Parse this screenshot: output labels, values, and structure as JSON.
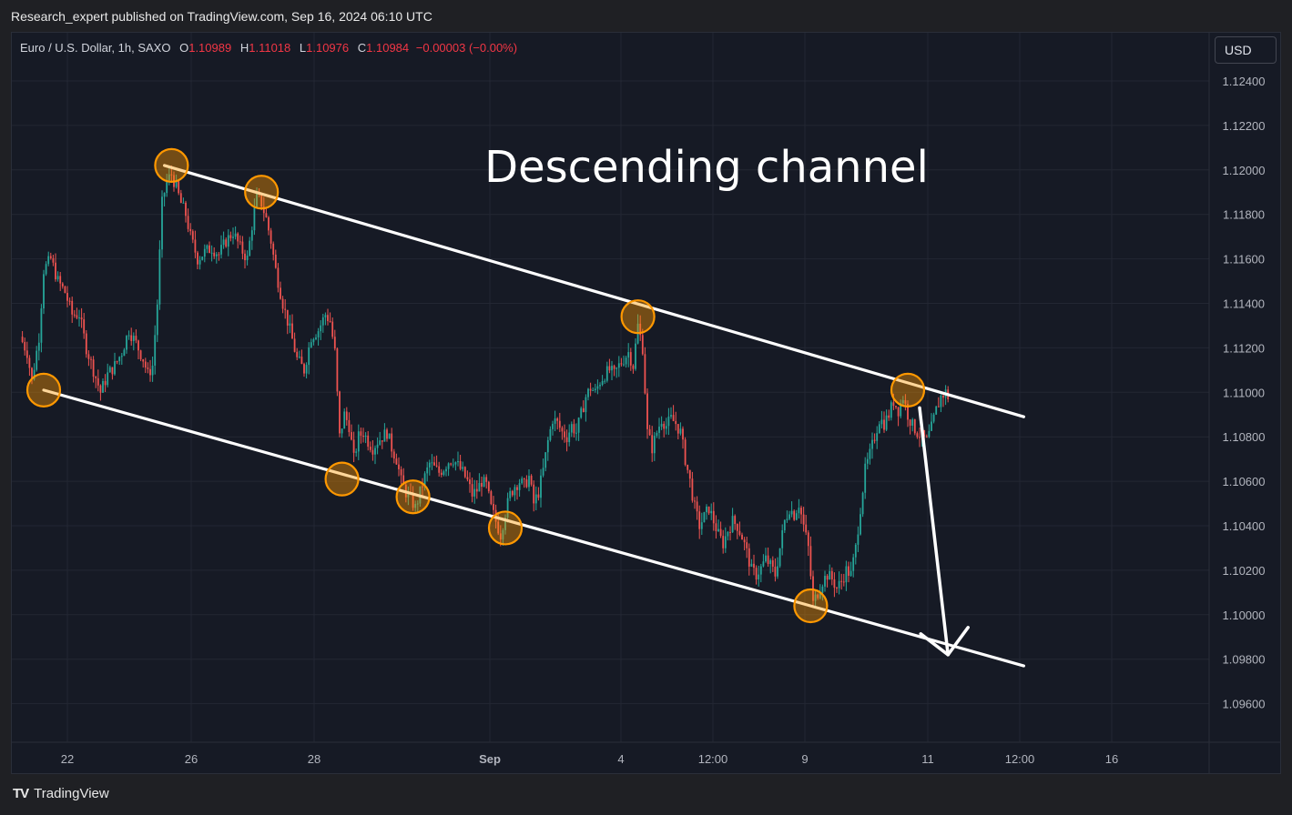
{
  "publisher_line": "Research_expert published on TradingView.com, Sep 16, 2024 06:10 UTC",
  "legend": {
    "symbol": "Euro / U.S. Dollar, 1h, SAXO",
    "open_label": "O",
    "open": "1.10989",
    "high_label": "H",
    "high": "1.11018",
    "low_label": "L",
    "low": "1.10976",
    "close_label": "C",
    "close": "1.10984",
    "change": "−0.00003 (−0.00%)"
  },
  "currency_button": "USD",
  "footer": {
    "logo": "TV",
    "brand": "TradingView"
  },
  "colors": {
    "up": "#26a69a",
    "down": "#ef5350",
    "annotation": "#ffffff",
    "marker": "#ff9800",
    "background": "#161a25"
  },
  "chart_data": {
    "type": "candlestick",
    "symbol": "EURUSD",
    "interval": "1h",
    "annotation_text": "Descending channel",
    "y_ticks": [
      "1.12400",
      "1.12200",
      "1.12000",
      "1.11800",
      "1.11600",
      "1.11400",
      "1.11200",
      "1.11000",
      "1.10800",
      "1.10600",
      "1.10400",
      "1.10200",
      "1.10000",
      "1.09800",
      "1.09600"
    ],
    "x_ticks": [
      "22",
      "26",
      "28",
      "Sep",
      "4",
      "12:00",
      "9",
      "11",
      "12:00",
      "16"
    ],
    "ylim": [
      1.0935,
      1.1259
    ],
    "grid": true,
    "close_path": [
      [
        0,
        1.1125
      ],
      [
        3,
        1.1118
      ],
      [
        5,
        1.1105
      ],
      [
        8,
        1.1125
      ],
      [
        10,
        1.1155
      ],
      [
        13,
        1.116
      ],
      [
        16,
        1.115
      ],
      [
        19,
        1.1145
      ],
      [
        22,
        1.1135
      ],
      [
        25,
        1.1135
      ],
      [
        28,
        1.112
      ],
      [
        31,
        1.111
      ],
      [
        34,
        1.11
      ],
      [
        37,
        1.1108
      ],
      [
        40,
        1.1112
      ],
      [
        43,
        1.1118
      ],
      [
        46,
        1.1128
      ],
      [
        49,
        1.1122
      ],
      [
        52,
        1.1115
      ],
      [
        54,
        1.1108
      ],
      [
        56,
        1.1112
      ],
      [
        58,
        1.114
      ],
      [
        60,
        1.1185
      ],
      [
        62,
        1.1195
      ],
      [
        64,
        1.1198
      ],
      [
        66,
        1.1192
      ],
      [
        68,
        1.1185
      ],
      [
        70,
        1.118
      ],
      [
        72,
        1.117
      ],
      [
        75,
        1.116
      ],
      [
        78,
        1.1163
      ],
      [
        81,
        1.1165
      ],
      [
        84,
        1.1162
      ],
      [
        87,
        1.1168
      ],
      [
        90,
        1.1172
      ],
      [
        93,
        1.1165
      ],
      [
        96,
        1.116
      ],
      [
        98,
        1.1175
      ],
      [
        100,
        1.1188
      ],
      [
        102,
        1.1185
      ],
      [
        104,
        1.1178
      ],
      [
        106,
        1.1168
      ],
      [
        108,
        1.1155
      ],
      [
        111,
        1.114
      ],
      [
        114,
        1.1128
      ],
      [
        117,
        1.1115
      ],
      [
        120,
        1.111
      ],
      [
        123,
        1.1125
      ],
      [
        126,
        1.1128
      ],
      [
        129,
        1.1135
      ],
      [
        131,
        1.1132
      ],
      [
        133,
        1.1118
      ],
      [
        135,
        1.108
      ],
      [
        137,
        1.109
      ],
      [
        139,
        1.1085
      ],
      [
        141,
        1.107
      ],
      [
        143,
        1.108
      ],
      [
        145,
        1.1082
      ],
      [
        147,
        1.1078
      ],
      [
        149,
        1.1075
      ],
      [
        151,
        1.1078
      ],
      [
        153,
        1.108
      ],
      [
        155,
        1.1082
      ],
      [
        157,
        1.1075
      ],
      [
        159,
        1.107
      ],
      [
        161,
        1.106
      ],
      [
        163,
        1.1055
      ],
      [
        165,
        1.1052
      ],
      [
        167,
        1.1048
      ],
      [
        169,
        1.1055
      ],
      [
        171,
        1.1062
      ],
      [
        173,
        1.1068
      ],
      [
        175,
        1.1066
      ],
      [
        177,
        1.1064
      ],
      [
        179,
        1.1066
      ],
      [
        181,
        1.1069
      ],
      [
        183,
        1.107
      ],
      [
        185,
        1.1067
      ],
      [
        187,
        1.1064
      ],
      [
        189,
        1.106
      ],
      [
        191,
        1.1054
      ],
      [
        193,
        1.1056
      ],
      [
        195,
        1.106
      ],
      [
        197,
        1.1058
      ],
      [
        199,
        1.1048
      ],
      [
        201,
        1.1042
      ],
      [
        203,
        1.1036
      ],
      [
        205,
        1.1046
      ],
      [
        207,
        1.1054
      ],
      [
        209,
        1.1058
      ],
      [
        211,
        1.106
      ],
      [
        213,
        1.1058
      ],
      [
        215,
        1.1062
      ],
      [
        217,
        1.105
      ],
      [
        219,
        1.1055
      ],
      [
        221,
        1.1065
      ],
      [
        223,
        1.1078
      ],
      [
        225,
        1.1088
      ],
      [
        227,
        1.1086
      ],
      [
        229,
        1.1082
      ],
      [
        231,
        1.108
      ],
      [
        233,
        1.1085
      ],
      [
        235,
        1.1082
      ],
      [
        237,
        1.109
      ],
      [
        239,
        1.1098
      ],
      [
        241,
        1.1102
      ],
      [
        243,
        1.11
      ],
      [
        245,
        1.1105
      ],
      [
        247,
        1.1108
      ],
      [
        249,
        1.111
      ],
      [
        251,
        1.1108
      ],
      [
        253,
        1.1112
      ],
      [
        255,
        1.1115
      ],
      [
        257,
        1.1118
      ],
      [
        259,
        1.1112
      ],
      [
        261,
        1.113
      ],
      [
        263,
        1.112
      ],
      [
        265,
        1.1082
      ],
      [
        267,
        1.1075
      ],
      [
        269,
        1.1082
      ],
      [
        271,
        1.1088
      ],
      [
        273,
        1.1085
      ],
      [
        275,
        1.1088
      ],
      [
        277,
        1.1086
      ],
      [
        279,
        1.1082
      ],
      [
        281,
        1.107
      ],
      [
        283,
        1.106
      ],
      [
        285,
        1.1048
      ],
      [
        287,
        1.104
      ],
      [
        289,
        1.1044
      ],
      [
        291,
        1.1048
      ],
      [
        293,
        1.1042
      ],
      [
        295,
        1.1036
      ],
      [
        297,
        1.1032
      ],
      [
        299,
        1.1038
      ],
      [
        301,
        1.1042
      ],
      [
        303,
        1.104
      ],
      [
        305,
        1.1035
      ],
      [
        307,
        1.1028
      ],
      [
        309,
        1.102
      ],
      [
        311,
        1.1018
      ],
      [
        313,
        1.1021
      ],
      [
        315,
        1.1025
      ],
      [
        317,
        1.1022
      ],
      [
        319,
        1.1018
      ],
      [
        321,
        1.103
      ],
      [
        323,
        1.1042
      ],
      [
        325,
        1.1048
      ],
      [
        327,
        1.1045
      ],
      [
        329,
        1.105
      ],
      [
        331,
        1.104
      ],
      [
        333,
        1.103
      ],
      [
        335,
        1.1005
      ],
      [
        337,
        1.101
      ],
      [
        339,
        1.1015
      ],
      [
        341,
        1.1018
      ],
      [
        343,
        1.1016
      ],
      [
        345,
        1.1012
      ],
      [
        347,
        1.1015
      ],
      [
        349,
        1.102
      ],
      [
        351,
        1.1018
      ],
      [
        353,
        1.103
      ],
      [
        355,
        1.1048
      ],
      [
        357,
        1.1065
      ],
      [
        359,
        1.1072
      ],
      [
        361,
        1.108
      ],
      [
        363,
        1.1088
      ],
      [
        365,
        1.1086
      ],
      [
        367,
        1.109
      ],
      [
        369,
        1.1096
      ],
      [
        371,
        1.1092
      ],
      [
        373,
        1.1098
      ],
      [
        375,
        1.109
      ],
      [
        377,
        1.1085
      ],
      [
        379,
        1.1082
      ],
      [
        381,
        1.108
      ],
      [
        383,
        1.1078
      ],
      [
        385,
        1.1084
      ],
      [
        387,
        1.1092
      ],
      [
        389,
        1.1098
      ],
      [
        391,
        1.11
      ],
      [
        392,
        1.1098
      ]
    ],
    "channel": {
      "upper": [
        [
          61,
          1.1202
        ],
        [
          424,
          1.1089
        ]
      ],
      "lower": [
        [
          10,
          1.1101
        ],
        [
          424,
          1.0977
        ]
      ]
    },
    "touch_points": [
      [
        10,
        1.1101
      ],
      [
        64,
        1.1202
      ],
      [
        102,
        1.119
      ],
      [
        136,
        1.1061
      ],
      [
        166,
        1.1053
      ],
      [
        205,
        1.1039
      ],
      [
        261,
        1.1134
      ],
      [
        334,
        1.1004
      ],
      [
        375,
        1.1101
      ]
    ],
    "projection_arrow": [
      [
        380,
        1.1093
      ],
      [
        392,
        1.0982
      ]
    ]
  }
}
